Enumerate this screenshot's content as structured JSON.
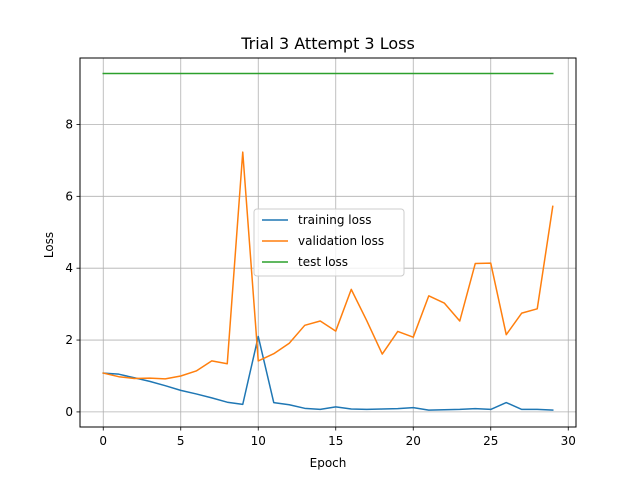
{
  "chart_data": {
    "type": "line",
    "title": "Trial 3 Attempt 3 Loss",
    "xlabel": "Epoch",
    "ylabel": "Loss",
    "xlim": [
      -1.5,
      30.5
    ],
    "ylim": [
      -0.42,
      9.85
    ],
    "xticks": [
      0,
      5,
      10,
      15,
      20,
      25,
      30
    ],
    "yticks": [
      0,
      2,
      4,
      6,
      8
    ],
    "grid": true,
    "legend_position": "center",
    "x": [
      0,
      1,
      2,
      3,
      4,
      5,
      6,
      7,
      8,
      9,
      10,
      11,
      12,
      13,
      14,
      15,
      16,
      17,
      18,
      19,
      20,
      21,
      22,
      23,
      24,
      25,
      26,
      27,
      28,
      29
    ],
    "series": [
      {
        "name": "training loss",
        "color": "#1f77b4",
        "values": [
          1.08,
          1.05,
          0.95,
          0.85,
          0.73,
          0.6,
          0.5,
          0.39,
          0.27,
          0.21,
          2.1,
          0.26,
          0.2,
          0.1,
          0.07,
          0.14,
          0.08,
          0.07,
          0.08,
          0.09,
          0.12,
          0.05,
          0.06,
          0.07,
          0.09,
          0.07,
          0.26,
          0.07,
          0.07,
          0.05
        ]
      },
      {
        "name": "validation loss",
        "color": "#ff7f0e",
        "values": [
          1.08,
          0.98,
          0.93,
          0.94,
          0.92,
          1.0,
          1.14,
          1.42,
          1.34,
          7.23,
          1.42,
          1.62,
          1.91,
          2.41,
          2.53,
          2.25,
          3.41,
          2.54,
          1.61,
          2.24,
          2.08,
          3.23,
          3.03,
          2.53,
          4.13,
          4.14,
          2.15,
          2.75,
          2.87,
          5.72
        ]
      },
      {
        "name": "test loss",
        "color": "#2ca02c",
        "values": [
          9.42,
          9.42,
          9.42,
          9.42,
          9.42,
          9.42,
          9.42,
          9.42,
          9.42,
          9.42,
          9.42,
          9.42,
          9.42,
          9.42,
          9.42,
          9.42,
          9.42,
          9.42,
          9.42,
          9.42,
          9.42,
          9.42,
          9.42,
          9.42,
          9.42,
          9.42,
          9.42,
          9.42,
          9.42,
          9.42
        ]
      }
    ]
  }
}
